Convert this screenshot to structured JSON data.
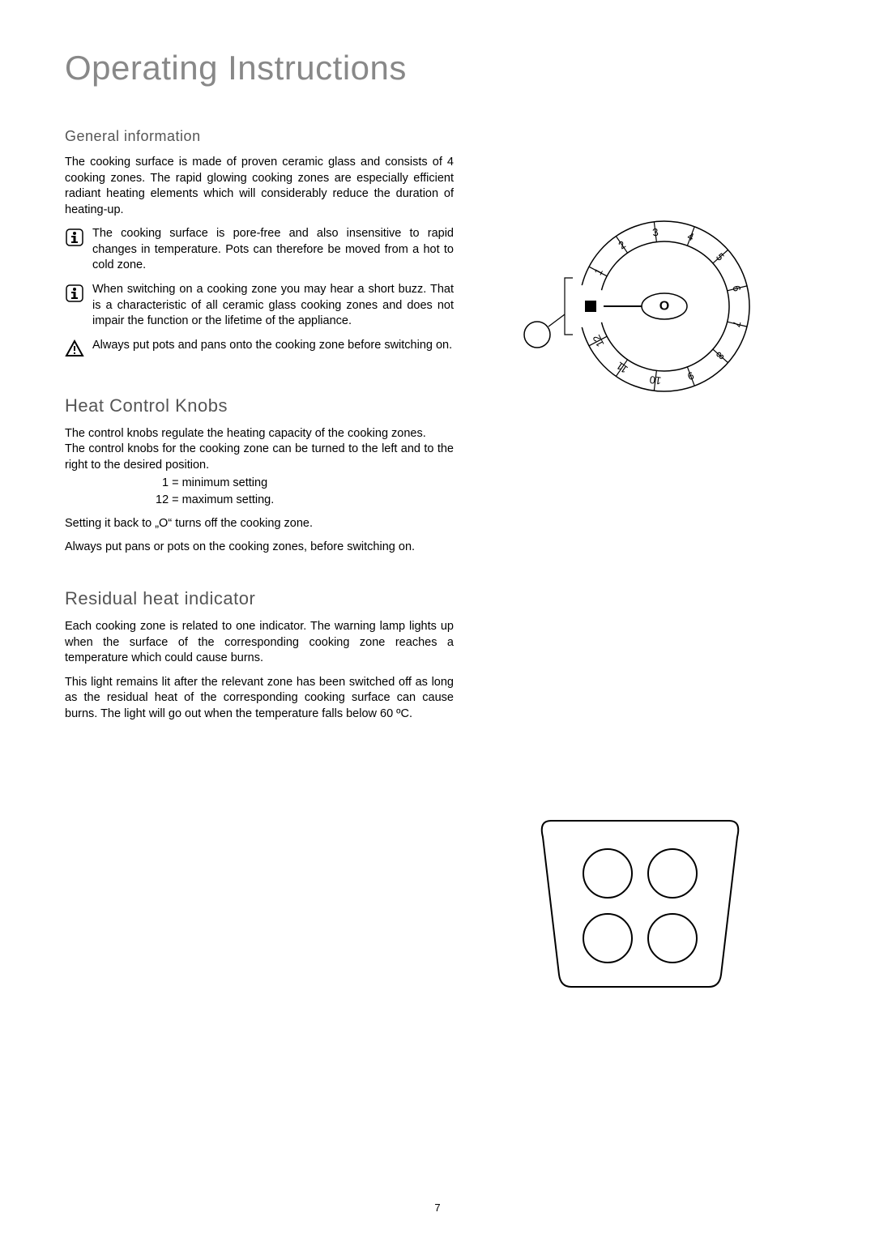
{
  "title": "Operating Instructions",
  "page_number": "7",
  "sections": {
    "general": {
      "heading": "General information",
      "intro": "The cooking surface is made of proven ceramic glass and consists of 4 cooking zones. The rapid glowing cooking zones are especially efficient radiant heating elements which will considerably reduce the duration of heating-up.",
      "note1": "The cooking surface is pore-free and also insensitive to rapid changes in temperature. Pots can therefore be moved from a hot to cold zone.",
      "note2": "When switching on a cooking zone you may hear a short buzz. That is a characteristic of all ceramic glass cooking zones and does not impair the function or the lifetime of the appliance.",
      "warning": "Always put pots and pans onto the cooking zone before switching on."
    },
    "heat": {
      "heading": "Heat Control Knobs",
      "p1": "The control knobs regulate the heating capacity of the cooking zones.",
      "p2": "The control knobs for the cooking zone can be turned to the left and to the right to the desired position.",
      "min": "1 = minimum setting",
      "max": "12 = maximum setting.",
      "p3": "Setting it back to „O“ turns off the cooking zone.",
      "p4": "Always put pans or pots on the cooking zones, before switching on."
    },
    "residual": {
      "heading": "Residual heat indicator",
      "p1": "Each cooking zone is related to one indicator. The warning lamp lights up when the surface of the corresponding cooking zone reaches a temperature which could cause burns.",
      "p2": "This light remains lit after the relevant zone has been switched off as long as the residual heat of the corresponding cooking surface can cause burns. The light will go out when the temperature falls below 60 ºC."
    }
  },
  "knob": {
    "labels": [
      "1",
      "2",
      "3",
      "4",
      "5",
      "6",
      "7",
      "8",
      "9",
      "10",
      "11",
      "12"
    ],
    "center": "O",
    "stroke": "#000000",
    "bg": "#ffffff"
  },
  "hob": {
    "stroke": "#000000",
    "bg": "#ffffff"
  },
  "colors": {
    "title": "#888888",
    "heading": "#555555",
    "text": "#000000",
    "page_bg": "#ffffff"
  }
}
